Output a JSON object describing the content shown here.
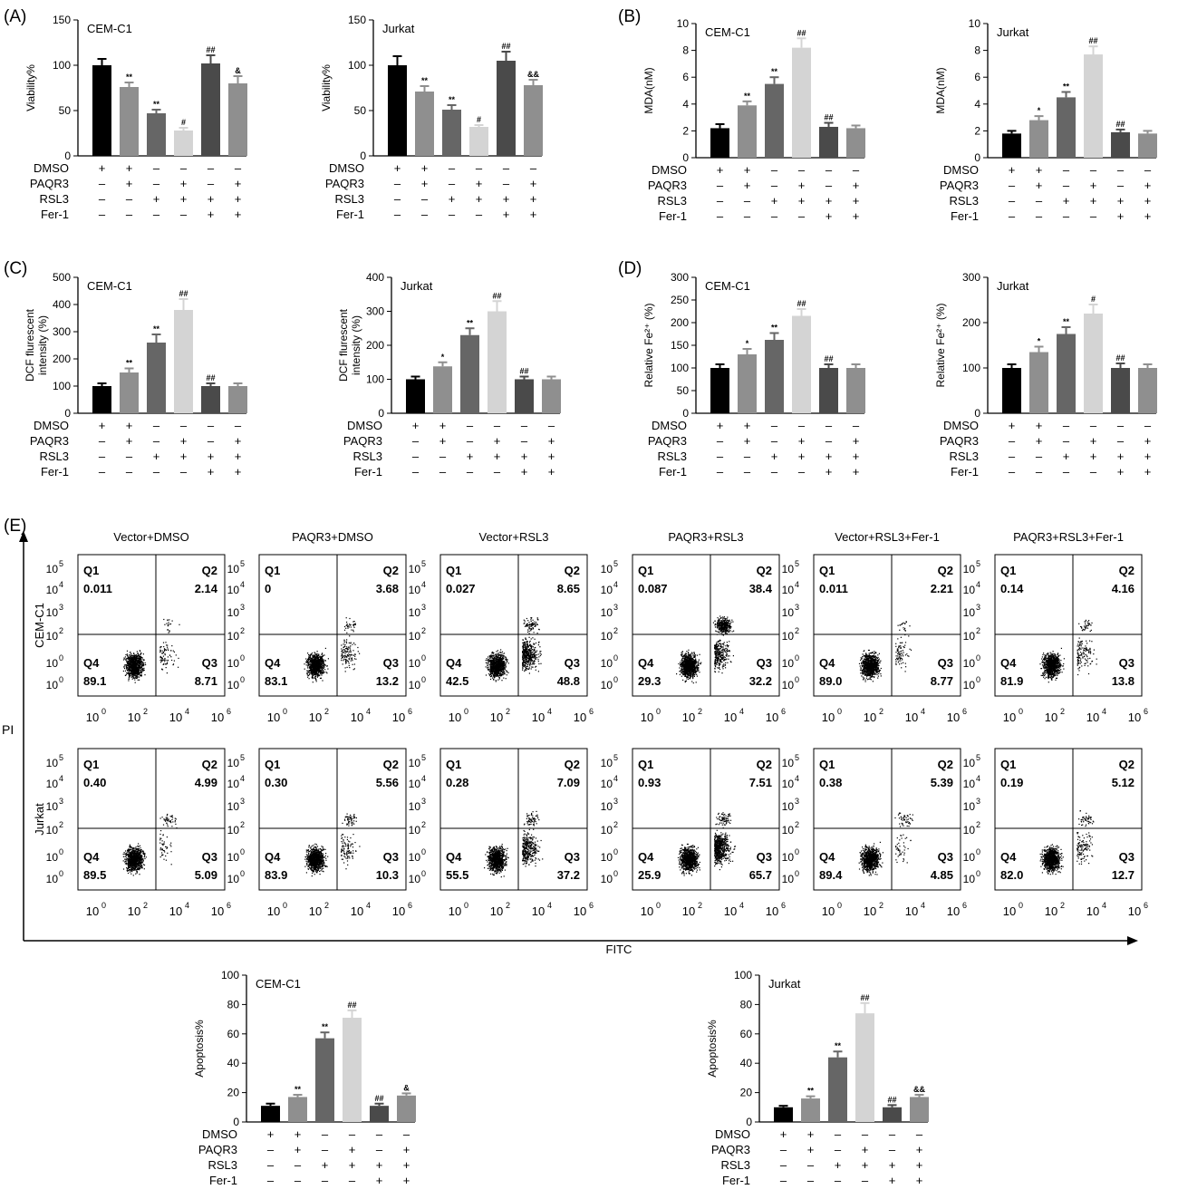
{
  "colors": [
    "#000000",
    "#8f8f8f",
    "#666666",
    "#d4d4d4",
    "#4a4a4a",
    "#8f8f8f"
  ],
  "row_labels": [
    "DMSO",
    "PAQR3",
    "RSL3",
    "Fer-1"
  ],
  "conditions": [
    [
      "+",
      "+",
      "–",
      "–",
      "–",
      "–"
    ],
    [
      "–",
      "+",
      "–",
      "+",
      "–",
      "+"
    ],
    [
      "–",
      "–",
      "+",
      "+",
      "+",
      "+"
    ],
    [
      "–",
      "–",
      "–",
      "–",
      "+",
      "+"
    ]
  ],
  "bar_charts": [
    {
      "panel": "(A)",
      "title": "CEM-C1",
      "ylabel": [
        "Viability%"
      ],
      "ymax": 150,
      "ticks": [
        0,
        50,
        100,
        150
      ],
      "values": [
        100,
        76,
        47,
        28,
        102,
        80
      ],
      "errors": [
        7,
        5,
        4,
        3,
        9,
        8
      ],
      "sig": [
        "",
        "**",
        "**",
        "#",
        "##",
        "&"
      ]
    },
    {
      "panel": "",
      "title": "Jurkat",
      "ylabel": [
        "Viability%"
      ],
      "ymax": 150,
      "ticks": [
        0,
        50,
        100,
        150
      ],
      "values": [
        100,
        71,
        51,
        32,
        105,
        78
      ],
      "errors": [
        10,
        6,
        5,
        2,
        10,
        6
      ],
      "sig": [
        "",
        "**",
        "**",
        "#",
        "##",
        "&&"
      ]
    },
    {
      "panel": "(B)",
      "title": "CEM-C1",
      "ylabel": [
        "MDA(nM)"
      ],
      "ymax": 10,
      "ticks": [
        0,
        2,
        4,
        6,
        8,
        10
      ],
      "values": [
        2.2,
        3.9,
        5.5,
        8.2,
        2.3,
        2.2
      ],
      "errors": [
        0.3,
        0.3,
        0.5,
        0.7,
        0.3,
        0.2
      ],
      "sig": [
        "",
        "**",
        "**",
        "##",
        "##",
        ""
      ]
    },
    {
      "panel": "",
      "title": "Jurkat",
      "ylabel": [
        "MDA(nM)"
      ],
      "ymax": 10,
      "ticks": [
        0,
        2,
        4,
        6,
        8,
        10
      ],
      "values": [
        1.8,
        2.8,
        4.5,
        7.7,
        1.9,
        1.8
      ],
      "errors": [
        0.2,
        0.3,
        0.4,
        0.6,
        0.2,
        0.2
      ],
      "sig": [
        "",
        "*",
        "**",
        "##",
        "##",
        ""
      ]
    },
    {
      "panel": "(C)",
      "title": "CEM-C1",
      "ylabel": [
        "DCF flurescent",
        "intensity (%)"
      ],
      "ymax": 500,
      "ticks": [
        0,
        100,
        200,
        300,
        400,
        500
      ],
      "values": [
        100,
        150,
        260,
        380,
        100,
        100
      ],
      "errors": [
        10,
        15,
        30,
        40,
        10,
        10
      ],
      "sig": [
        "",
        "**",
        "**",
        "##",
        "##",
        ""
      ]
    },
    {
      "panel": "",
      "title": "Jurkat",
      "ylabel": [
        "DCF flurescent",
        "intensity (%)"
      ],
      "ymax": 400,
      "ticks": [
        0,
        100,
        200,
        300,
        400
      ],
      "values": [
        100,
        138,
        230,
        300,
        100,
        100
      ],
      "errors": [
        8,
        12,
        20,
        30,
        8,
        8
      ],
      "sig": [
        "",
        "*",
        "**",
        "##",
        "##",
        ""
      ]
    },
    {
      "panel": "(D)",
      "title": "CEM-C1",
      "ylabel": [
        "Relative Fe²⁺ (%)"
      ],
      "ymax": 300,
      "ticks": [
        0,
        50,
        100,
        150,
        200,
        250,
        300
      ],
      "values": [
        100,
        130,
        162,
        215,
        100,
        100
      ],
      "errors": [
        8,
        12,
        15,
        15,
        8,
        8
      ],
      "sig": [
        "",
        "*",
        "**",
        "##",
        "##",
        ""
      ]
    },
    {
      "panel": "",
      "title": "Jurkat",
      "ylabel": [
        "Relative Fe²⁺ (%)"
      ],
      "ymax": 300,
      "ticks": [
        0,
        100,
        200,
        300
      ],
      "values": [
        100,
        135,
        175,
        220,
        100,
        100
      ],
      "errors": [
        8,
        12,
        15,
        20,
        10,
        8
      ],
      "sig": [
        "",
        "*",
        "**",
        "#",
        "##",
        ""
      ]
    },
    {
      "panel": "",
      "title": "CEM-C1",
      "ylabel": [
        "Apoptosis%"
      ],
      "ymax": 100,
      "ticks": [
        0,
        20,
        40,
        60,
        80,
        100
      ],
      "values": [
        11,
        17,
        57,
        71,
        11,
        18
      ],
      "errors": [
        1.5,
        1.5,
        4,
        5,
        1.5,
        1.5
      ],
      "sig": [
        "",
        "**",
        "**",
        "##",
        "##",
        "&"
      ]
    },
    {
      "panel": "",
      "title": "Jurkat",
      "ylabel": [
        "Apoptosis%"
      ],
      "ymax": 100,
      "ticks": [
        0,
        20,
        40,
        60,
        80,
        100
      ],
      "values": [
        10,
        16,
        44,
        74,
        10,
        17
      ],
      "errors": [
        1,
        1.5,
        4,
        7,
        1.5,
        1.5
      ],
      "sig": [
        "",
        "**",
        "**",
        "##",
        "##",
        "&&"
      ]
    }
  ],
  "flow": {
    "panel": "(E)",
    "titles": [
      "Vector+DMSO",
      "PAQR3+DMSO",
      "Vector+RSL3",
      "PAQR3+RSL3",
      "Vector+RSL3+Fer-1",
      "PAQR3+RSL3+Fer-1"
    ],
    "row_names": [
      "CEM-C1",
      "Jurkat"
    ],
    "y_axis": "PI",
    "x_axis": "FITC",
    "axis_ticks": [
      "10",
      "10",
      "10",
      "10"
    ],
    "axis_exps": [
      "0",
      "2",
      "4",
      "6"
    ],
    "y_exps": [
      "5",
      "4",
      "3",
      "2",
      "0",
      "0"
    ],
    "quad_names": [
      "Q1",
      "Q2",
      "Q3",
      "Q4"
    ],
    "quadrants": [
      [
        [
          "0.011",
          "2.14",
          "8.71",
          "89.1"
        ],
        [
          "0",
          "3.68",
          "13.2",
          "83.1"
        ],
        [
          "0.027",
          "8.65",
          "48.8",
          "42.5"
        ],
        [
          "0.087",
          "38.4",
          "32.2",
          "29.3"
        ],
        [
          "0.011",
          "2.21",
          "8.77",
          "89.0"
        ],
        [
          "0.14",
          "4.16",
          "13.8",
          "81.9"
        ]
      ],
      [
        [
          "0.40",
          "4.99",
          "5.09",
          "89.5"
        ],
        [
          "0.30",
          "5.56",
          "10.3",
          "83.9"
        ],
        [
          "0.28",
          "7.09",
          "37.2",
          "55.5"
        ],
        [
          "0.93",
          "7.51",
          "65.7",
          "25.9"
        ],
        [
          "0.38",
          "5.39",
          "4.85",
          "89.4"
        ],
        [
          "0.19",
          "5.12",
          "12.7",
          "82.0"
        ]
      ]
    ]
  }
}
